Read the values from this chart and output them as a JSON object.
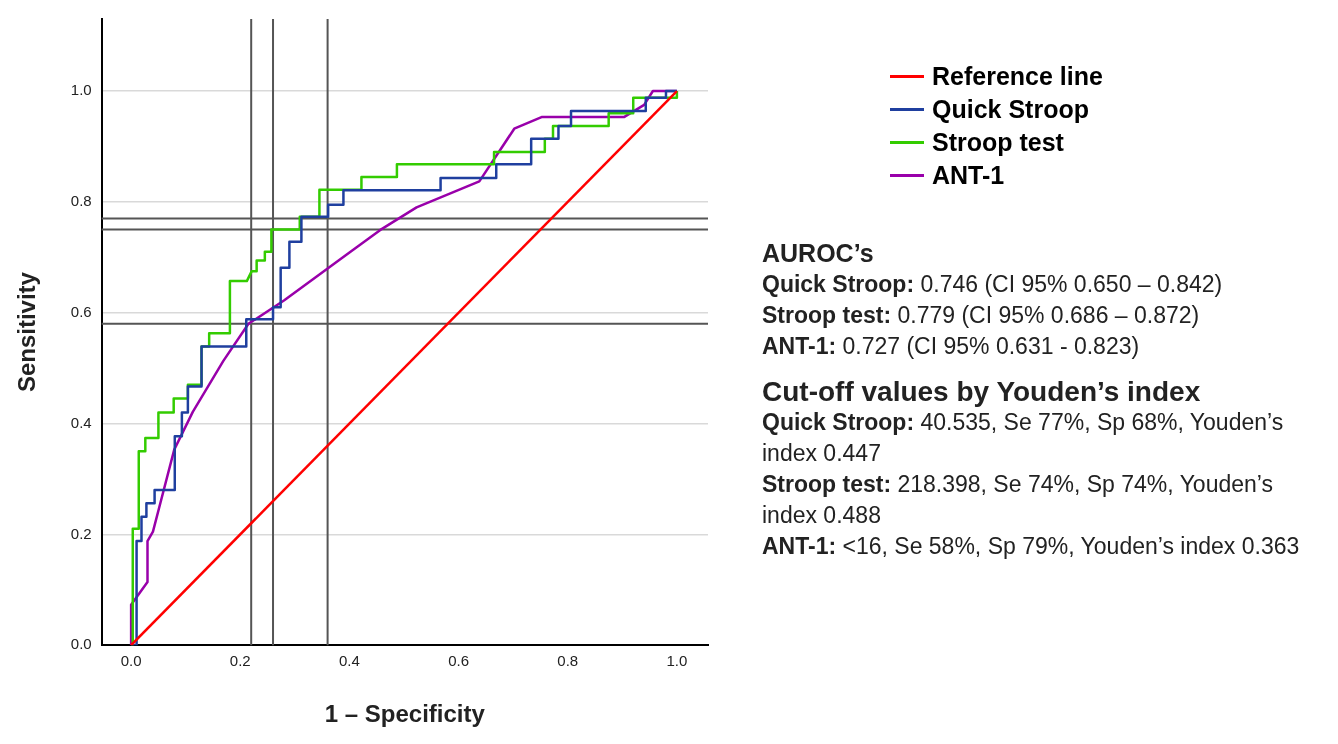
{
  "chart_data": {
    "type": "line",
    "xlabel": "1 – Specificity",
    "ylabel": "Sensitivity",
    "xlim": [
      -0.054,
      1.057
    ],
    "ylim": [
      0,
      1.13
    ],
    "xticks": [
      {
        "value": 0,
        "label": "0.0"
      },
      {
        "value": 0.2,
        "label": "0.2"
      },
      {
        "value": 0.4,
        "label": "0.4"
      },
      {
        "value": 0.6,
        "label": "0.6"
      },
      {
        "value": 0.8,
        "label": "0.8"
      },
      {
        "value": 1,
        "label": "1.0"
      }
    ],
    "yticks": [
      {
        "value": 0,
        "label": "0.0"
      },
      {
        "value": 0.2,
        "label": "0.2"
      },
      {
        "value": 0.4,
        "label": "0.4"
      },
      {
        "value": 0.6,
        "label": "0.6"
      },
      {
        "value": 0.8,
        "label": "0.8"
      },
      {
        "value": 1,
        "label": "1.0"
      }
    ],
    "grid": "y",
    "legend": "right",
    "marker": "none",
    "line_style": "solid",
    "series": [
      {
        "name": "Reference line",
        "color": "#ff0000",
        "x": [
          0,
          1
        ],
        "values": [
          0,
          1
        ]
      },
      {
        "name": "Quick Stroop",
        "color": "#1f3f9f",
        "x": [
          0,
          0.01,
          0.01,
          0.019,
          0.019,
          0.028,
          0.028,
          0.043,
          0.043,
          0.08,
          0.08,
          0.093,
          0.093,
          0.104,
          0.104,
          0.129,
          0.129,
          0.211,
          0.211,
          0.26,
          0.26,
          0.274,
          0.274,
          0.29,
          0.29,
          0.312,
          0.312,
          0.361,
          0.361,
          0.389,
          0.389,
          0.567,
          0.567,
          0.669,
          0.669,
          0.733,
          0.733,
          0.783,
          0.783,
          0.806,
          0.806,
          0.943,
          0.943,
          0.98,
          0.98,
          1
        ],
        "values": [
          0,
          0,
          0.188,
          0.188,
          0.232,
          0.232,
          0.256,
          0.256,
          0.28,
          0.28,
          0.377,
          0.377,
          0.42,
          0.42,
          0.467,
          0.467,
          0.539,
          0.539,
          0.588,
          0.588,
          0.61,
          0.61,
          0.681,
          0.681,
          0.728,
          0.728,
          0.773,
          0.773,
          0.795,
          0.795,
          0.821,
          0.821,
          0.843,
          0.843,
          0.868,
          0.868,
          0.914,
          0.914,
          0.937,
          0.937,
          0.964,
          0.964,
          0.988,
          0.988,
          1,
          1
        ]
      },
      {
        "name": "Stroop test",
        "color": "#33cc00",
        "x": [
          0,
          0.003,
          0.003,
          0.014,
          0.014,
          0.026,
          0.026,
          0.05,
          0.05,
          0.078,
          0.078,
          0.104,
          0.104,
          0.129,
          0.129,
          0.143,
          0.143,
          0.181,
          0.181,
          0.212,
          0.221,
          0.23,
          0.23,
          0.245,
          0.245,
          0.257,
          0.257,
          0.309,
          0.309,
          0.345,
          0.345,
          0.422,
          0.422,
          0.487,
          0.487,
          0.665,
          0.665,
          0.758,
          0.758,
          0.773,
          0.773,
          0.875,
          0.875,
          0.92,
          0.92,
          1,
          1
        ],
        "values": [
          0,
          0,
          0.21,
          0.21,
          0.35,
          0.35,
          0.374,
          0.374,
          0.42,
          0.42,
          0.445,
          0.445,
          0.47,
          0.47,
          0.539,
          0.539,
          0.563,
          0.563,
          0.657,
          0.657,
          0.675,
          0.675,
          0.694,
          0.694,
          0.71,
          0.71,
          0.75,
          0.75,
          0.773,
          0.773,
          0.822,
          0.822,
          0.845,
          0.845,
          0.868,
          0.868,
          0.89,
          0.89,
          0.914,
          0.914,
          0.937,
          0.937,
          0.96,
          0.96,
          0.988,
          0.988,
          1
        ]
      },
      {
        "name": "ANT-1",
        "color": "#9900aa",
        "x": [
          0,
          0,
          0.03,
          0.03,
          0.04,
          0.079,
          0.113,
          0.169,
          0.215,
          0.28,
          0.456,
          0.523,
          0.638,
          0.702,
          0.752,
          0.903,
          0.94,
          0.956,
          0.993,
          1
        ],
        "values": [
          0,
          0.073,
          0.114,
          0.188,
          0.205,
          0.353,
          0.421,
          0.513,
          0.58,
          0.622,
          0.749,
          0.79,
          0.837,
          0.932,
          0.953,
          0.953,
          0.975,
          1,
          1,
          1
        ]
      }
    ],
    "ref_lines": [
      {
        "axis": "y",
        "value": 0.77,
        "color": "#555555"
      },
      {
        "axis": "y",
        "value": 0.75,
        "color": "#555555"
      },
      {
        "axis": "y",
        "value": 0.58,
        "color": "#555555"
      },
      {
        "axis": "x",
        "value": 0.22,
        "color": "#555555"
      },
      {
        "axis": "x",
        "value": 0.26,
        "color": "#555555"
      },
      {
        "axis": "x",
        "value": 0.36,
        "color": "#555555"
      }
    ],
    "annotations": [
      "AUROC’s",
      "Quick Stroop: 0.746 (CI 95% 0.650 – 0.842)",
      "Stroop test: 0.779 (CI 95% 0.686 – 0.872)",
      "ANT-1: 0.727 (CI 95%   0.631 - 0.823)",
      "Cut-off values by Youden’s index",
      "Quick Stroop: 40.535, Se 77%, Sp 68%, Youden’s index 0.447",
      "Stroop test: 218.398, Se 74%, Sp 74%, Youden’s index 0.488",
      "ANT-1: <16, Se 58%, Sp 79%, Youden’s index 0.363"
    ]
  }
}
